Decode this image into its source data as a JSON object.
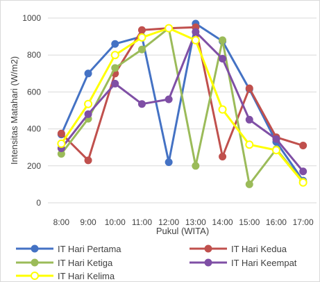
{
  "chart_data": {
    "type": "line",
    "title": "",
    "xlabel": "Pukul (WITA)",
    "ylabel": "Intensitas Matahari (W/m2)",
    "ylim": [
      0,
      1000
    ],
    "yticks": [
      0,
      200,
      400,
      600,
      800,
      1000
    ],
    "grid": "horizontal",
    "legend_position": "bottom",
    "categories": [
      "8:00",
      "9:00",
      "10:00",
      "11:00",
      "12:00",
      "13:00",
      "14:00",
      "15:00",
      "16:00",
      "17:00"
    ],
    "series": [
      {
        "name": "IT Hari Pertama",
        "color": "#4472C4",
        "marker": "circle",
        "values": [
          370,
          700,
          860,
          900,
          220,
          970,
          875,
          615,
          330,
          120
        ]
      },
      {
        "name": "IT Hari Kedua",
        "color": "#C0504D",
        "marker": "circle",
        "values": [
          375,
          230,
          700,
          935,
          945,
          950,
          250,
          620,
          355,
          310
        ]
      },
      {
        "name": "IT Hari Ketiga",
        "color": "#9BBB59",
        "marker": "circle",
        "values": [
          265,
          455,
          730,
          830,
          945,
          200,
          880,
          100,
          290,
          115
        ]
      },
      {
        "name": "IT Hari Keempat",
        "color": "#7F4FA5",
        "marker": "circle",
        "values": [
          295,
          480,
          645,
          535,
          560,
          925,
          780,
          450,
          345,
          170
        ]
      },
      {
        "name": "IT Hari Kelima",
        "color": "#FFFF00",
        "marker": "hollow-circle",
        "values": [
          320,
          535,
          800,
          895,
          945,
          880,
          505,
          315,
          285,
          110
        ]
      }
    ]
  }
}
